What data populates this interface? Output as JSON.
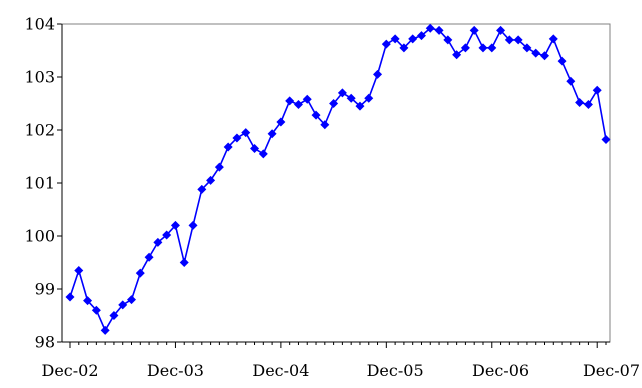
{
  "chart_data": {
    "type": "line",
    "title": "",
    "xlabel": "",
    "ylabel": "",
    "ylim": [
      98,
      104
    ],
    "yticks": [
      98,
      99,
      100,
      101,
      102,
      103,
      104
    ],
    "ytick_labels": [
      "98",
      "99",
      "100",
      "101",
      "102",
      "103",
      "104"
    ],
    "xtick_labels": [
      "Dec-02",
      "Dec-03",
      "Dec-04",
      "Dec-05",
      "Dec-06",
      "Dec-07"
    ],
    "grid": false,
    "legend": "none",
    "colors": {
      "line": "#0000ff",
      "marker": "#0000ff",
      "frame": "#808080",
      "axis": "#000000"
    },
    "series": [
      {
        "marker": "diamond",
        "values": [
          98.85,
          99.35,
          98.78,
          98.6,
          98.22,
          98.5,
          98.7,
          98.8,
          99.3,
          99.6,
          99.88,
          100.02,
          100.2,
          99.5,
          100.2,
          100.88,
          101.05,
          101.3,
          101.68,
          101.85,
          101.95,
          101.65,
          101.55,
          101.93,
          102.15,
          102.55,
          102.48,
          102.58,
          102.28,
          102.1,
          102.5,
          102.7,
          102.6,
          102.45,
          102.6,
          103.05,
          103.62,
          103.72,
          103.55,
          103.72,
          103.78,
          103.92,
          103.88,
          103.7,
          103.42,
          103.55,
          103.88,
          103.55,
          103.55,
          103.88,
          103.7,
          103.7,
          103.55,
          103.45,
          103.4,
          103.72,
          103.3,
          102.92,
          102.52,
          102.48,
          102.75,
          101.82
        ]
      }
    ]
  }
}
